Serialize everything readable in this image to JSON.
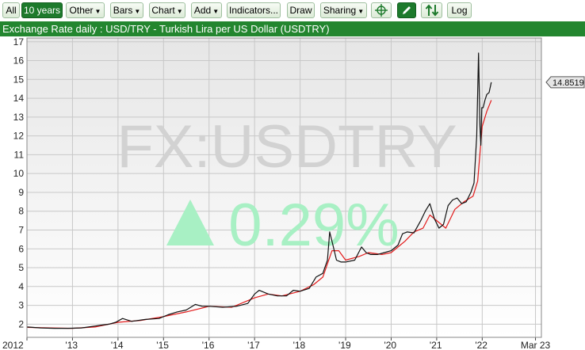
{
  "toolbar": {
    "all": "All",
    "ten_years": "10 years",
    "other": "Other",
    "bars": "Bars",
    "chart": "Chart",
    "add": "Add",
    "indicators": "Indicators...",
    "draw": "Draw",
    "sharing": "Sharing",
    "log": "Log"
  },
  "header": {
    "title": "Exchange Rate daily : USD/TRY - Turkish Lira per US Dollar (USDTRY)"
  },
  "chart_data": {
    "type": "line",
    "title": "Exchange Rate daily : USD/TRY - Turkish Lira per US Dollar (USDTRY)",
    "watermark": "FX:USDTRY",
    "change_text": "0.29%",
    "change_direction": "up",
    "last_value_label": "14.8519",
    "x_tick_labels": [
      "2012",
      "'13",
      "'14",
      "'15",
      "'16",
      "'17",
      "'18",
      "'19",
      "'20",
      "'21",
      "'22",
      "Mar 23"
    ],
    "x_ticks": [
      2012,
      2013,
      2014,
      2015,
      2016,
      2017,
      2018,
      2019,
      2020,
      2021,
      2022,
      2023.17
    ],
    "xlim": [
      2012.0,
      2023.3
    ],
    "ylim": [
      1.3,
      17.2
    ],
    "y_ticks": [
      2,
      3,
      4,
      5,
      6,
      7,
      8,
      9,
      10,
      11,
      12,
      13,
      14,
      15,
      16,
      17
    ],
    "grid": true,
    "series": [
      {
        "color": "#111111",
        "x": [
          2012.0,
          2012.3,
          2012.6,
          2012.9,
          2013.2,
          2013.5,
          2013.8,
          2013.95,
          2014.1,
          2014.3,
          2014.6,
          2014.9,
          2015.1,
          2015.3,
          2015.5,
          2015.7,
          2015.85,
          2016.0,
          2016.3,
          2016.6,
          2016.85,
          2017.0,
          2017.1,
          2017.3,
          2017.5,
          2017.7,
          2017.85,
          2018.0,
          2018.2,
          2018.35,
          2018.5,
          2018.6,
          2018.65,
          2018.72,
          2018.8,
          2018.9,
          2019.0,
          2019.2,
          2019.35,
          2019.45,
          2019.55,
          2019.7,
          2019.85,
          2020.0,
          2020.15,
          2020.25,
          2020.35,
          2020.5,
          2020.65,
          2020.75,
          2020.85,
          2020.95,
          2021.05,
          2021.15,
          2021.25,
          2021.35,
          2021.45,
          2021.55,
          2021.65,
          2021.75,
          2021.82,
          2021.88,
          2021.92,
          2021.95,
          2021.97,
          2021.99,
          2022.02,
          2022.06,
          2022.1,
          2022.15,
          2022.2
        ],
        "y": [
          1.85,
          1.8,
          1.78,
          1.78,
          1.8,
          1.9,
          2.0,
          2.1,
          2.3,
          2.15,
          2.25,
          2.3,
          2.5,
          2.65,
          2.75,
          3.05,
          2.95,
          2.95,
          2.9,
          2.95,
          3.1,
          3.6,
          3.8,
          3.6,
          3.5,
          3.5,
          3.8,
          3.75,
          3.9,
          4.5,
          4.7,
          5.4,
          6.9,
          6.2,
          5.4,
          5.3,
          5.3,
          5.4,
          6.1,
          5.8,
          5.7,
          5.7,
          5.8,
          5.9,
          6.2,
          6.8,
          6.9,
          6.85,
          7.5,
          8.0,
          8.4,
          7.6,
          7.1,
          7.3,
          8.3,
          8.6,
          8.7,
          8.4,
          8.5,
          9.0,
          9.5,
          12.0,
          16.4,
          12.5,
          11.5,
          13.5,
          13.5,
          13.9,
          14.2,
          14.3,
          14.85
        ]
      },
      {
        "color": "#e21b1b",
        "x": [
          2012.0,
          2012.5,
          2013.0,
          2013.5,
          2014.0,
          2014.5,
          2015.0,
          2015.5,
          2016.0,
          2016.5,
          2017.0,
          2017.3,
          2017.6,
          2018.0,
          2018.3,
          2018.5,
          2018.7,
          2018.85,
          2019.0,
          2019.3,
          2019.5,
          2019.8,
          2020.0,
          2020.3,
          2020.5,
          2020.7,
          2020.85,
          2021.0,
          2021.2,
          2021.4,
          2021.6,
          2021.8,
          2021.9,
          2022.0,
          2022.1,
          2022.2
        ],
        "y": [
          1.83,
          1.8,
          1.78,
          1.85,
          2.1,
          2.2,
          2.4,
          2.65,
          2.95,
          2.9,
          3.4,
          3.6,
          3.5,
          3.75,
          4.1,
          4.5,
          5.9,
          5.9,
          5.4,
          5.6,
          5.8,
          5.7,
          5.8,
          6.4,
          6.9,
          7.1,
          7.8,
          7.5,
          7.1,
          8.1,
          8.5,
          8.8,
          9.6,
          12.5,
          13.3,
          13.9
        ]
      }
    ]
  }
}
